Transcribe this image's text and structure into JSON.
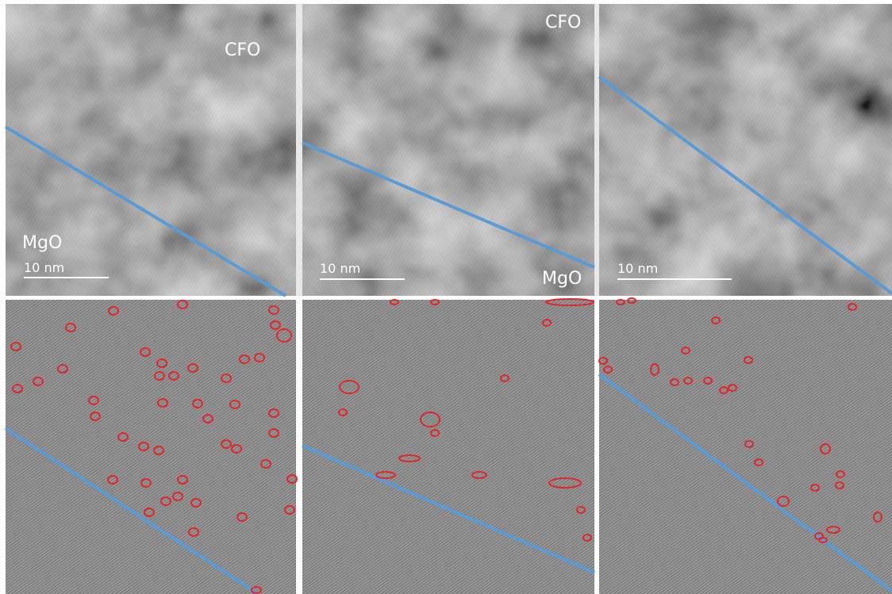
{
  "panels": [
    {
      "labels": [
        "CFO",
        "MgO"
      ],
      "scale_bar": "10 nm"
    },
    {
      "labels": [
        "CFO",
        "MgO"
      ],
      "scale_bar": "10 nm"
    },
    {
      "scale_bar": "10 nm"
    }
  ]
}
